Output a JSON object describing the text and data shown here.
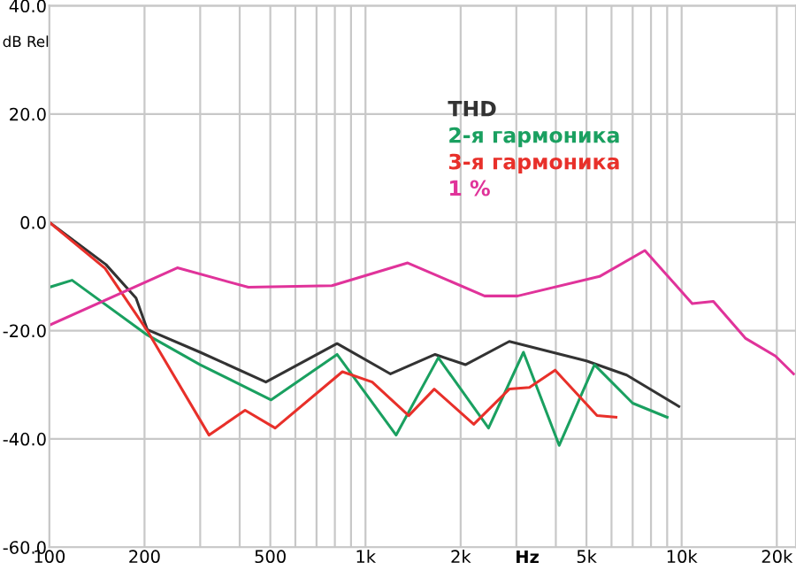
{
  "chart_data": {
    "type": "line",
    "xlabel": "Hz",
    "ylabel": "dB Rel",
    "log": "x",
    "grid": true,
    "legend": "top right",
    "marker": "none",
    "line_style": "solid",
    "xlim": [
      100,
      23000
    ],
    "ylim": [
      -60,
      40
    ],
    "xticks": [
      {
        "value": 100,
        "label": "100"
      },
      {
        "value": 200,
        "label": "200"
      },
      {
        "value": 300,
        "label": null
      },
      {
        "value": 400,
        "label": null
      },
      {
        "value": 500,
        "label": "500"
      },
      {
        "value": 600,
        "label": null
      },
      {
        "value": 700,
        "label": null
      },
      {
        "value": 800,
        "label": null
      },
      {
        "value": 900,
        "label": null
      },
      {
        "value": 1000,
        "label": "1k"
      },
      {
        "value": 2000,
        "label": "2k"
      },
      {
        "value": 3000,
        "label": null
      },
      {
        "value": 4000,
        "label": null
      },
      {
        "value": 5000,
        "label": "5k"
      },
      {
        "value": 6000,
        "label": null
      },
      {
        "value": 7000,
        "label": null
      },
      {
        "value": 8000,
        "label": null
      },
      {
        "value": 9000,
        "label": null
      },
      {
        "value": 10000,
        "label": "10k"
      },
      {
        "value": 20000,
        "label": "20k"
      }
    ],
    "yticks": [
      {
        "value": -60,
        "label": "-60.0"
      },
      {
        "value": -40,
        "label": "-40.0"
      },
      {
        "value": -20,
        "label": "-20.0"
      },
      {
        "value": 0,
        "label": "0.0"
      },
      {
        "value": 20,
        "label": "20.0"
      },
      {
        "value": 40,
        "label": "40.0"
      }
    ],
    "series": [
      {
        "name": "THD",
        "color": "#333333",
        "x": [
          100,
          151,
          188,
          204,
          300,
          484,
          813,
          1200,
          1660,
          2070,
          2850,
          5000,
          6700,
          9800
        ],
        "values": [
          0,
          -7.8,
          -14,
          -19.8,
          -24,
          -29.5,
          -22.4,
          -28,
          -24.4,
          -26.3,
          -22,
          -25.6,
          -28.2,
          -34
        ]
      },
      {
        "name": "2-я гармоника",
        "color": "#1aa060",
        "x": [
          100,
          118,
          204,
          300,
          503,
          813,
          1250,
          1700,
          2450,
          3160,
          4100,
          5300,
          7000,
          9000
        ],
        "values": [
          -12,
          -10.7,
          -20.8,
          -26.3,
          -32.8,
          -24.4,
          -39.3,
          -25,
          -38,
          -24,
          -41.2,
          -26.3,
          -33.4,
          -36
        ]
      },
      {
        "name": "3-я гармоника",
        "color": "#e8302a",
        "x": [
          100,
          150,
          204,
          320,
          416,
          518,
          845,
          1050,
          1370,
          1650,
          2200,
          2850,
          3300,
          3980,
          5400,
          6200
        ],
        "values": [
          0,
          -8.5,
          -20,
          -39.3,
          -34.7,
          -38,
          -27.6,
          -29.5,
          -35.7,
          -30.8,
          -37.3,
          -30.8,
          -30.5,
          -27.3,
          -35.7,
          -36
        ]
      },
      {
        "name": "1 %",
        "color": "#e0339a",
        "x": [
          100,
          254,
          426,
          783,
          1360,
          2380,
          3030,
          5500,
          7650,
          10800,
          12600,
          15900,
          19800,
          22600
        ],
        "values": [
          -19,
          -8.4,
          -12,
          -11.7,
          -7.5,
          -13.6,
          -13.6,
          -10,
          -5.2,
          -15,
          -14.6,
          -21.4,
          -24.7,
          -28
        ]
      }
    ]
  }
}
